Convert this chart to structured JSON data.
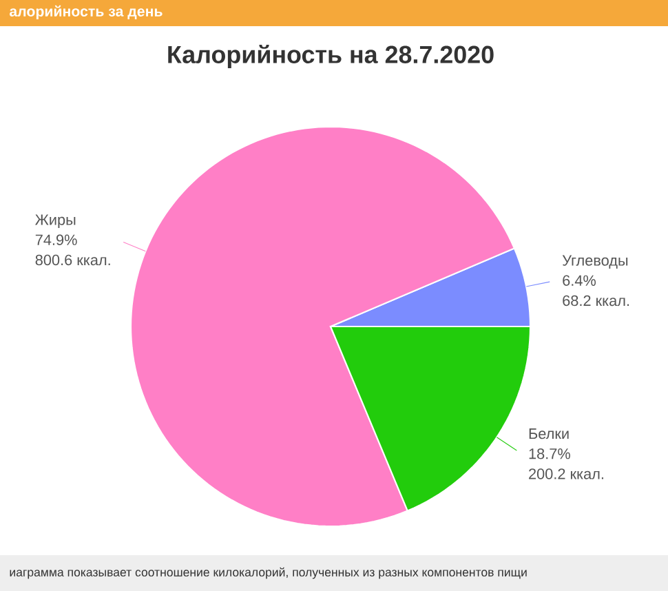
{
  "chart_data": {
    "type": "pie",
    "title": "Калорийность на 28.7.2020",
    "categories": [
      "Углеводы",
      "Жиры",
      "Белки"
    ],
    "values": [
      6.4,
      74.9,
      18.7
    ],
    "colors": [
      "#7b8cff",
      "#ff7fc6",
      "#22cc0c"
    ],
    "value_labels": [
      "6.4%",
      "74.9%",
      "18.7%"
    ],
    "annotations": [
      "68.2 ккал.",
      "800.6 ккал.",
      "200.2 ккал.",
      "алорийность за день",
      "иаграмма показывает соотношение килокалорий, полученных из разных компонентов пищи"
    ]
  }
}
